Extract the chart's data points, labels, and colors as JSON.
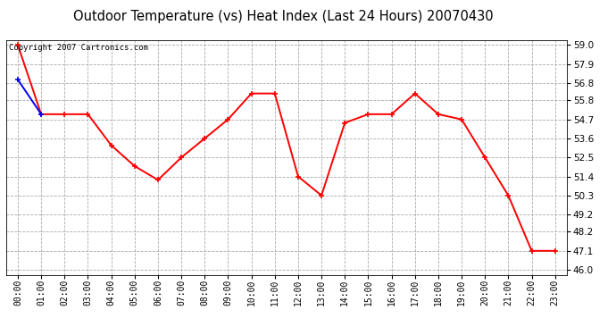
{
  "title": "Outdoor Temperature (vs) Heat Index (Last 24 Hours) 20070430",
  "copyright": "Copyright 2007 Cartronics.com",
  "x_labels": [
    "00:00",
    "01:00",
    "02:00",
    "03:00",
    "04:00",
    "05:00",
    "06:00",
    "07:00",
    "08:00",
    "09:00",
    "10:00",
    "11:00",
    "12:00",
    "13:00",
    "14:00",
    "15:00",
    "16:00",
    "17:00",
    "18:00",
    "19:00",
    "20:00",
    "21:00",
    "22:00",
    "23:00"
  ],
  "temp_vals": [
    59.0,
    55.0,
    55.0,
    55.0,
    53.2,
    52.0,
    51.2,
    52.5,
    53.6,
    54.7,
    56.2,
    56.2,
    51.4,
    50.3,
    54.5,
    55.0,
    55.0,
    56.2,
    55.0,
    54.7,
    52.5,
    50.3,
    47.1,
    47.1
  ],
  "hi_vals": [
    57.0,
    55.0,
    55.0,
    55.0,
    53.2,
    52.0,
    51.2,
    52.5,
    53.6,
    54.7,
    56.2,
    56.2,
    51.4,
    50.3,
    54.5,
    55.0,
    55.0,
    56.2,
    55.0,
    54.7,
    52.5,
    50.3,
    47.1,
    47.1
  ],
  "temp_color": "#ff0000",
  "hi_color": "#0000ff",
  "bg_color": "#ffffff",
  "grid_color": "#aaaaaa",
  "ylim_min": 45.72,
  "ylim_max": 59.28,
  "yticks": [
    46.0,
    47.1,
    48.2,
    49.2,
    50.3,
    51.4,
    52.5,
    53.6,
    54.7,
    55.8,
    56.8,
    57.9,
    59.0
  ],
  "title_fontsize": 10.5,
  "tick_fontsize": 7,
  "copyright_fontsize": 6.5,
  "marker_size": 5,
  "linewidth": 1.4
}
